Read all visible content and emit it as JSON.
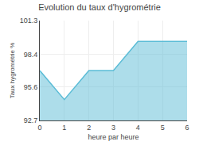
{
  "chart_data": {
    "type": "area",
    "title": "Evolution du taux d'hygrométrie",
    "xlabel": "heure par heure",
    "ylabel": "Taux hygrométrie %",
    "x": [
      0,
      1,
      2,
      3,
      4,
      5,
      6
    ],
    "values": [
      97.0,
      94.5,
      97.0,
      97.0,
      99.5,
      99.5,
      99.5
    ],
    "color": "#5bbcd6",
    "xlim": [
      0,
      6
    ],
    "xticks": [
      0,
      1,
      2,
      3,
      4,
      5,
      6
    ],
    "ylim": [
      92.7,
      101.3
    ],
    "yticks": [
      92.7,
      95.6,
      98.4,
      101.3
    ],
    "grid": true
  }
}
